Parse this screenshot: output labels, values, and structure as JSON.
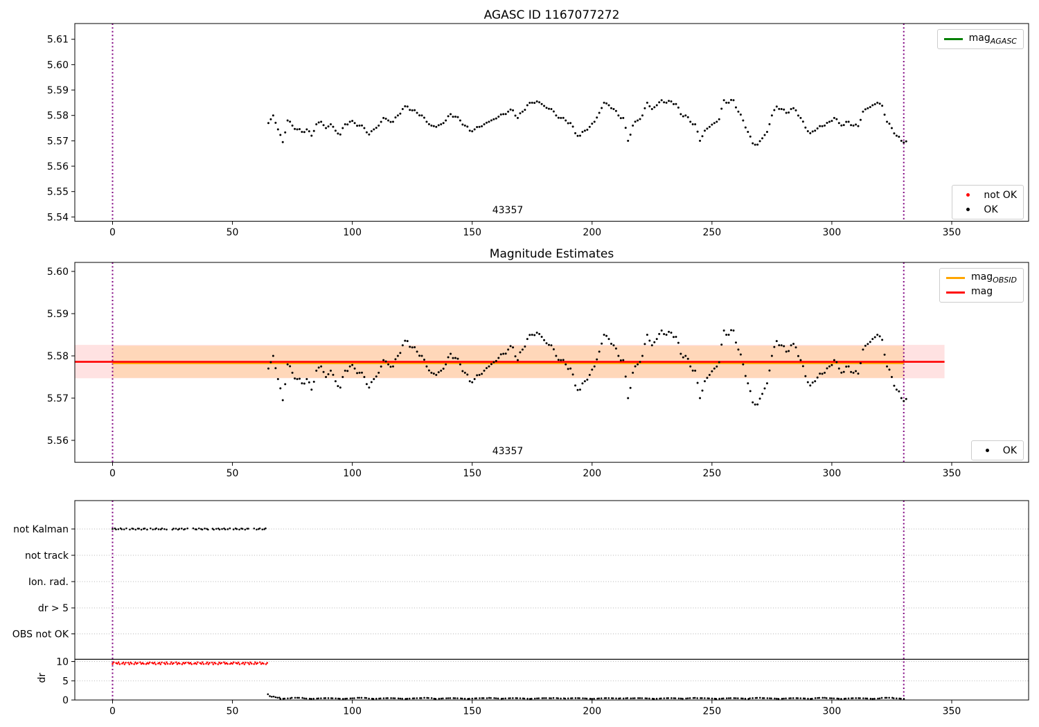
{
  "figure": {
    "background": "#ffffff"
  },
  "colors": {
    "ok_marker": "#000000",
    "not_ok_marker": "#ff0000",
    "mag_agasc": "#008000",
    "mag_obsid": "#ffa500",
    "mag": "#ff0000",
    "obsid_boundary_line": "#800080",
    "grid": "#b5b5b5"
  },
  "chart_data": [
    {
      "type": "scatter",
      "title": "AGASC ID 1167077272",
      "xlabel": "",
      "ylabel": "",
      "xlim": [
        -16,
        382
      ],
      "ylim": [
        5.5387,
        5.6165
      ],
      "xticks": [
        0,
        50,
        100,
        150,
        200,
        250,
        300,
        350
      ],
      "yticks": [
        "5.54",
        "5.55",
        "5.56",
        "5.57",
        "5.58",
        "5.59",
        "5.60",
        "5.61"
      ],
      "grid": false,
      "vlines": {
        "x": [
          0,
          330
        ],
        "color": "#800080",
        "style": "dotted"
      },
      "legend": [
        {
          "label": "mag",
          "sub": "AGASC",
          "color": "#008000",
          "type": "line"
        }
      ],
      "legend2": [
        {
          "label": "not OK",
          "color": "#ff0000",
          "type": "dot"
        },
        {
          "label": "OK",
          "color": "#000000",
          "type": "dot"
        }
      ],
      "annotation": {
        "text": "43357",
        "x": 165,
        "y": 5.5425
      },
      "series": [
        {
          "name": "OK",
          "marker": "point",
          "color": "#000000",
          "x": [
            65,
            67,
            69,
            71,
            73,
            75,
            77,
            79,
            81,
            83,
            85,
            87,
            89,
            91,
            93,
            95,
            97,
            99,
            101,
            103,
            105,
            107,
            109,
            111,
            113,
            115,
            117,
            119,
            121,
            123,
            125,
            127,
            129,
            131,
            133,
            135,
            137,
            139,
            141,
            143,
            145,
            147,
            149,
            151,
            153,
            155,
            157,
            159,
            161,
            163,
            165,
            167,
            169,
            171,
            173,
            175,
            177,
            179,
            181,
            183,
            185,
            187,
            189,
            191,
            193,
            195,
            197,
            199,
            201,
            203,
            205,
            207,
            209,
            211,
            213,
            215,
            217,
            219,
            221,
            223,
            225,
            227,
            229,
            231,
            233,
            235,
            237,
            239,
            241,
            243,
            245,
            247,
            249,
            251,
            253,
            255,
            257,
            259,
            261,
            263,
            265,
            267,
            269,
            271,
            273,
            275,
            277,
            279,
            281,
            283,
            285,
            287,
            289,
            291,
            293,
            295,
            297,
            299,
            301,
            303,
            305,
            307,
            309,
            311,
            313,
            315,
            317,
            319,
            321,
            323,
            325,
            327,
            329,
            331
          ],
          "y": [
            5.577,
            5.58,
            5.5745,
            5.5695,
            5.578,
            5.576,
            5.5745,
            5.5735,
            5.5745,
            5.572,
            5.5765,
            5.5775,
            5.575,
            5.5765,
            5.574,
            5.5725,
            5.5765,
            5.5775,
            5.577,
            5.576,
            5.575,
            5.5725,
            5.5745,
            5.576,
            5.579,
            5.578,
            5.5775,
            5.58,
            5.5825,
            5.5835,
            5.582,
            5.581,
            5.58,
            5.5775,
            5.576,
            5.5755,
            5.5765,
            5.578,
            5.5805,
            5.5795,
            5.578,
            5.576,
            5.574,
            5.5745,
            5.5755,
            5.5765,
            5.5775,
            5.5785,
            5.5795,
            5.5805,
            5.5815,
            5.582,
            5.579,
            5.5815,
            5.584,
            5.585,
            5.5855,
            5.5845,
            5.583,
            5.5825,
            5.58,
            5.579,
            5.578,
            5.577,
            5.573,
            5.572,
            5.574,
            5.5755,
            5.5775,
            5.581,
            5.585,
            5.584,
            5.5825,
            5.58,
            5.579,
            5.57,
            5.576,
            5.578,
            5.58,
            5.585,
            5.5825,
            5.584,
            5.586,
            5.585,
            5.5855,
            5.5845,
            5.5805,
            5.58,
            5.5775,
            5.5765,
            5.57,
            5.574,
            5.5755,
            5.577,
            5.5785,
            5.586,
            5.585,
            5.586,
            5.5815,
            5.578,
            5.5735,
            5.569,
            5.5685,
            5.571,
            5.5735,
            5.58,
            5.5835,
            5.5825,
            5.581,
            5.5825,
            5.582,
            5.579,
            5.5752,
            5.573,
            5.574,
            5.5758,
            5.576,
            5.5775,
            5.579,
            5.577,
            5.5762,
            5.5775,
            5.576,
            5.5758,
            5.5815,
            5.5828,
            5.584,
            5.585,
            5.5838,
            5.5775,
            5.575,
            5.572,
            5.57,
            5.5698
          ]
        }
      ]
    },
    {
      "type": "scatter",
      "title": "Magnitude Estimates",
      "xlabel": "",
      "ylabel": "",
      "xlim": [
        -16,
        382
      ],
      "ylim": [
        5.5548,
        5.6023
      ],
      "xticks": [
        0,
        50,
        100,
        150,
        200,
        250,
        300,
        350
      ],
      "yticks": [
        "5.56",
        "5.57",
        "5.58",
        "5.59",
        "5.60"
      ],
      "grid": false,
      "vlines": {
        "x": [
          0,
          330
        ],
        "color": "#800080",
        "style": "dotted"
      },
      "bands": [
        {
          "name": "mag uncertainty band",
          "y0": 5.5747,
          "y1": 5.5826,
          "x0": -15.9,
          "x1": 347,
          "fill": "rgba(255,0,0,0.115)"
        },
        {
          "name": "obsid uncertainty band",
          "y0": 5.5748,
          "y1": 5.5824,
          "x0": 0,
          "x1": 330,
          "fill": "rgba(255,165,0,0.18)"
        }
      ],
      "lines": [
        {
          "name": "mag_OBSID",
          "value": 5.5783,
          "x0": 0,
          "x1": 330,
          "color": "#ffa500"
        },
        {
          "name": "mag",
          "value": 5.5786,
          "x0": -15.9,
          "x1": 347,
          "color": "#ff0000"
        }
      ],
      "legend": [
        {
          "label": "mag",
          "sub": "OBSID",
          "color": "#ffa500",
          "type": "line"
        },
        {
          "label": "mag",
          "sub": "",
          "color": "#ff0000",
          "type": "line"
        }
      ],
      "legend2": [
        {
          "label": "OK",
          "color": "#000000",
          "type": "dot"
        }
      ],
      "annotation": {
        "text": "43357",
        "x": 165,
        "y": 5.5574
      },
      "series_ref": 0,
      "series_note": "same OK magnitude points as the top plot"
    },
    {
      "type": "scatter-flags",
      "title": "",
      "ylabel": "dr",
      "xlim": [
        -16,
        382
      ],
      "xticks": [
        0,
        50,
        100,
        150,
        200,
        250,
        300,
        350
      ],
      "flag_labels": [
        "not Kalman",
        "not track",
        "Ion. rad.",
        "dr > 5",
        "OBS not OK"
      ],
      "dr_ticks": [
        10,
        5,
        0
      ],
      "grid": true,
      "divider_dr": 10.58,
      "vlines": {
        "x": [
          0,
          330
        ],
        "color": "#800080",
        "style": "dotted"
      },
      "series": [
        {
          "name": "not Kalman flag",
          "row": "not Kalman",
          "color": "#000000",
          "x_start": 0,
          "x_end": 64,
          "step": 0.8
        },
        {
          "name": "dr not OK (clipped near 10)",
          "color": "#ff0000",
          "x_start": 0,
          "x_end": 64.5,
          "step": 0.5,
          "dr_base": 9.5
        },
        {
          "name": "dr OK",
          "color": "#000000",
          "x_start": 70,
          "x_end": 330,
          "step": 1,
          "dr_base": 0.3,
          "dr_jitter": 0.18,
          "lead": [
            [
              64.8,
              1.5
            ],
            [
              65.6,
              1.0
            ],
            [
              66.4,
              0.85
            ],
            [
              67.2,
              0.9
            ],
            [
              68.0,
              0.72
            ],
            [
              68.8,
              0.6
            ],
            [
              69.6,
              0.62
            ]
          ]
        }
      ]
    }
  ]
}
